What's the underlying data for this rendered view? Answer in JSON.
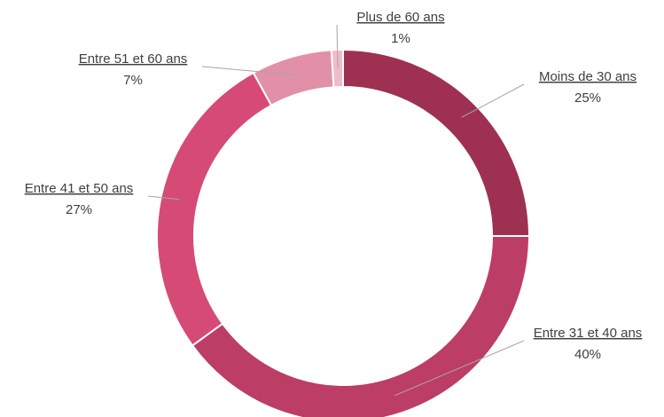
{
  "chart_data": {
    "type": "donut",
    "categories": [
      "Moins de 30 ans",
      "Entre 31 et 40 ans",
      "Entre 41 et 50 ans",
      "Entre 51 et 60 ans",
      "Plus de 60 ans"
    ],
    "values": [
      25,
      40,
      27,
      7,
      1
    ],
    "value_labels": [
      "25%",
      "40%",
      "27%",
      "7%",
      "1%"
    ],
    "colors": [
      "#9e3052",
      "#bc3d66",
      "#d64a76",
      "#e190a7",
      "#f0bccb"
    ]
  }
}
